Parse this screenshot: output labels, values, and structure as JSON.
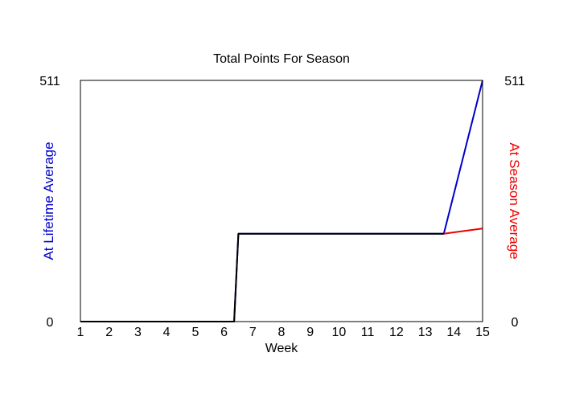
{
  "chart_data": {
    "type": "line",
    "title": "Total Points For Season",
    "xlabel": "Week",
    "ylabel_left": "At Lifetime Average",
    "ylabel_right": "At Season Average",
    "x": [
      1,
      2,
      3,
      4,
      5,
      6,
      6.5,
      13.7,
      15
    ],
    "xticks": [
      1,
      2,
      3,
      4,
      5,
      6,
      7,
      8,
      9,
      10,
      11,
      12,
      13,
      14,
      15
    ],
    "xlim": [
      1,
      15
    ],
    "ylim": [
      0,
      511
    ],
    "yticks_left": [
      "0",
      "511"
    ],
    "yticks_right": [
      "0",
      "511"
    ],
    "grid": false,
    "series": [
      {
        "axis": "left",
        "color": "#0000cc",
        "points": [
          [
            1,
            0
          ],
          [
            6.35,
            0
          ],
          [
            6.5,
            186
          ],
          [
            13.65,
            186
          ],
          [
            15,
            511
          ]
        ]
      },
      {
        "axis": "right",
        "color": "#ee0000",
        "points": [
          [
            13.65,
            186
          ],
          [
            14,
            189
          ],
          [
            15,
            197
          ]
        ]
      },
      {
        "axis": "left",
        "color": "#000000",
        "points": [
          [
            1,
            0
          ],
          [
            6.35,
            0
          ],
          [
            6.5,
            186
          ],
          [
            13.65,
            186
          ]
        ]
      }
    ],
    "colors": {
      "left_axis_label": "#0000cc",
      "right_axis_label": "#ee0000",
      "frame": "#000000"
    }
  }
}
